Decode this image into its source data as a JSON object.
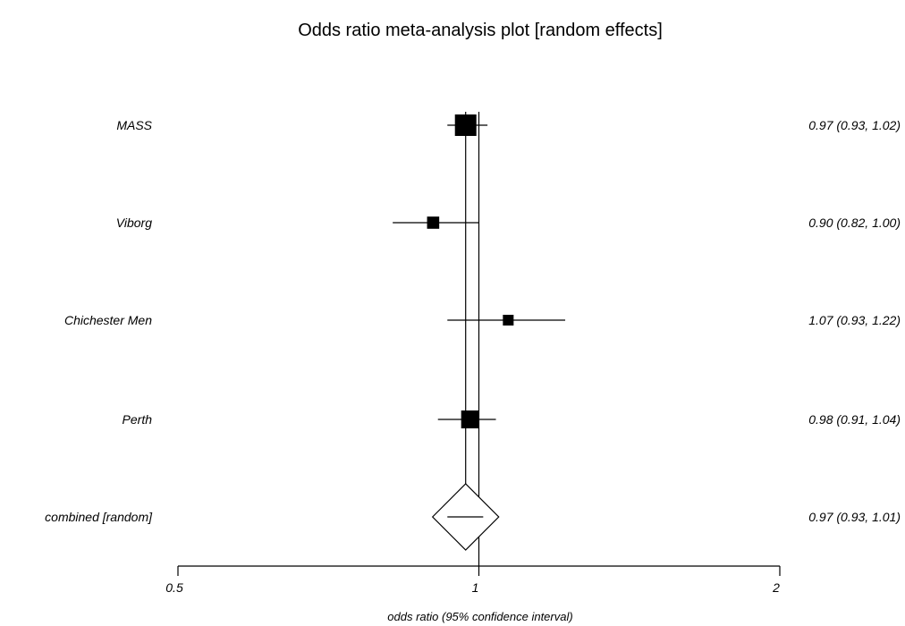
{
  "chart_data": {
    "type": "forest",
    "title": "Odds ratio meta-analysis plot [random effects]",
    "xlabel": "odds ratio (95% confidence interval)",
    "x_scale": "log",
    "xlim": [
      0.5,
      2
    ],
    "x_ticks": [
      "0.5",
      "1",
      "2"
    ],
    "null_value": 1,
    "studies": [
      {
        "name": "MASS",
        "or": 0.97,
        "lower": 0.93,
        "upper": 1.02,
        "label": "0.97 (0.93, 1.02)",
        "weight": 1.0
      },
      {
        "name": "Viborg",
        "or": 0.9,
        "lower": 0.82,
        "upper": 1.0,
        "label": "0.90 (0.82, 1.00)",
        "weight": 0.35
      },
      {
        "name": "Chichester Men",
        "or": 1.07,
        "lower": 0.93,
        "upper": 1.22,
        "label": "1.07 (0.93, 1.22)",
        "weight": 0.25
      },
      {
        "name": "Perth",
        "or": 0.98,
        "lower": 0.91,
        "upper": 1.04,
        "label": "0.98 (0.91, 1.04)",
        "weight": 0.75
      }
    ],
    "combined": {
      "name": "combined [random]",
      "or": 0.97,
      "lower": 0.93,
      "upper": 1.01,
      "label": "0.97 (0.93, 1.01)"
    }
  }
}
